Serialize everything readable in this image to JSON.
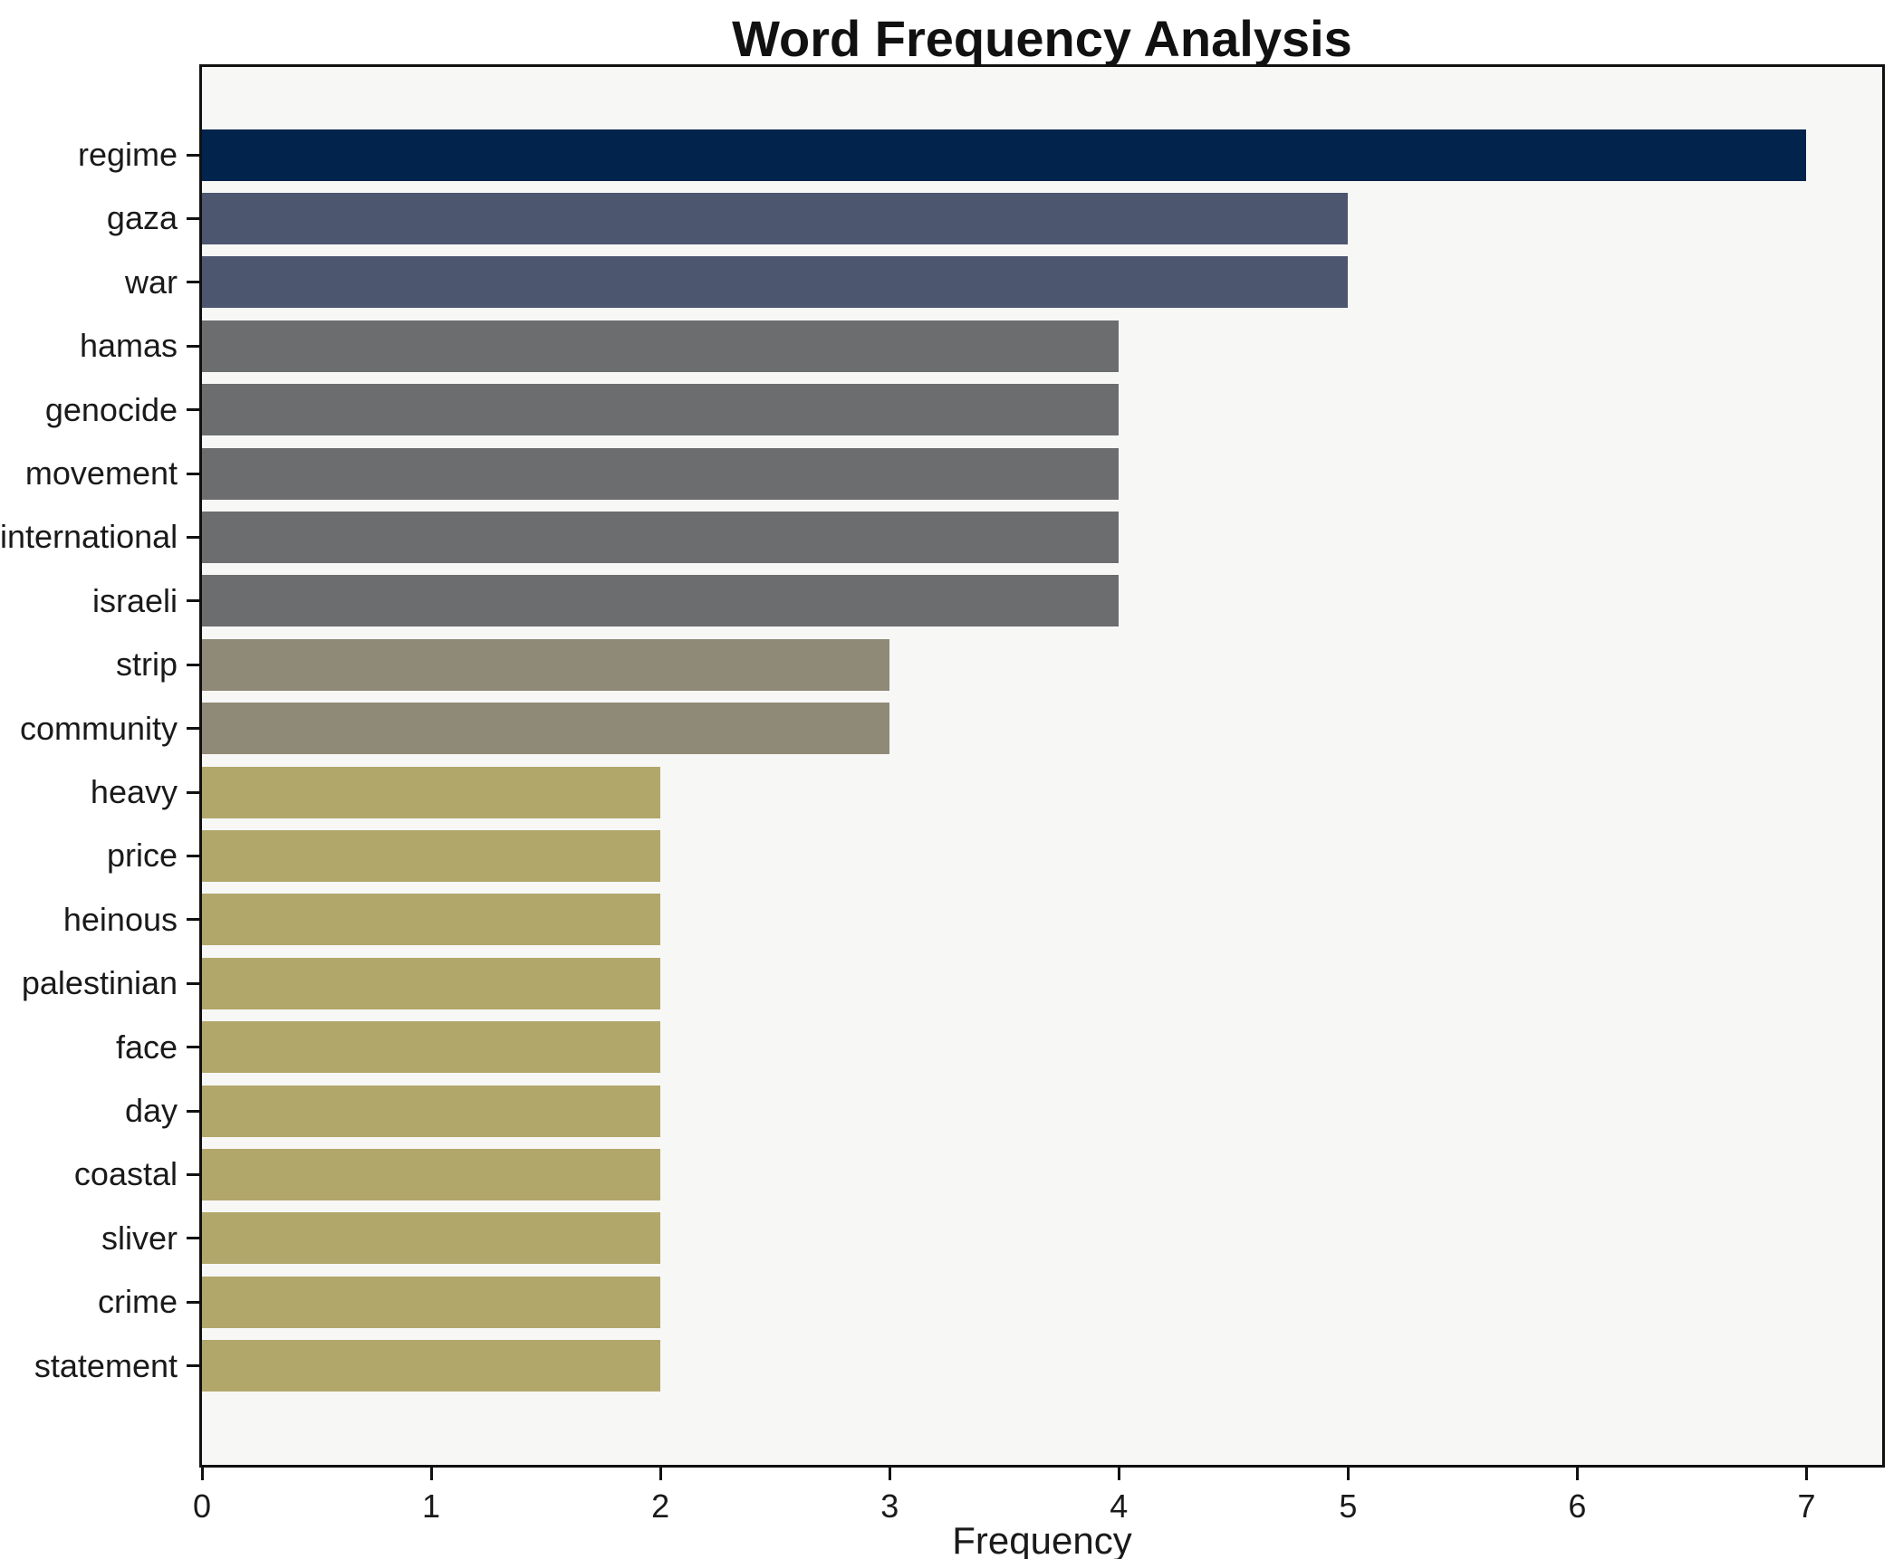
{
  "chart_data": {
    "type": "bar",
    "orientation": "horizontal",
    "title": "Word Frequency Analysis",
    "xlabel": "Frequency",
    "ylabel": "",
    "categories": [
      "regime",
      "gaza",
      "war",
      "hamas",
      "genocide",
      "movement",
      "international",
      "israeli",
      "strip",
      "community",
      "heavy",
      "price",
      "heinous",
      "palestinian",
      "face",
      "day",
      "coastal",
      "sliver",
      "crime",
      "statement"
    ],
    "values": [
      7,
      5,
      5,
      4,
      4,
      4,
      4,
      4,
      3,
      3,
      2,
      2,
      2,
      2,
      2,
      2,
      2,
      2,
      2,
      2
    ],
    "bar_colors": [
      "#02234c",
      "#4d566f",
      "#4d566f",
      "#6c6d6e",
      "#6c6d6e",
      "#6c6d6e",
      "#6c6d6e",
      "#6c6d6e",
      "#8f8977",
      "#8f8977",
      "#b2a76b",
      "#b2a76b",
      "#b2a76b",
      "#b2a76b",
      "#b2a76b",
      "#b2a76b",
      "#b2a76b",
      "#b2a76b",
      "#b2a76b",
      "#b2a76b"
    ],
    "xticks": [
      0,
      1,
      2,
      3,
      4,
      5,
      6,
      7
    ],
    "xlim": [
      0,
      7.33
    ],
    "grid": false,
    "legend": "none",
    "plot_background": "#f7f7f6",
    "figure_background": "#ffffff",
    "spine_color": "#111111",
    "text_color": "#1a1a1a"
  }
}
